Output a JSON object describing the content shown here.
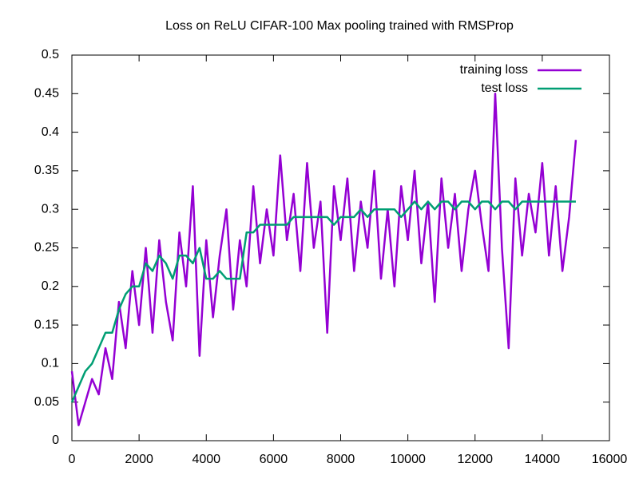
{
  "chart_data": {
    "type": "line",
    "title": "Loss on ReLU CIFAR-100 Max pooling trained with RMSProp",
    "x": [
      0,
      200,
      400,
      600,
      800,
      1000,
      1200,
      1400,
      1600,
      1800,
      2000,
      2200,
      2400,
      2600,
      2800,
      3000,
      3200,
      3400,
      3600,
      3800,
      4000,
      4200,
      4400,
      4600,
      4800,
      5000,
      5200,
      5400,
      5600,
      5800,
      6000,
      6200,
      6400,
      6600,
      6800,
      7000,
      7200,
      7400,
      7600,
      7800,
      8000,
      8200,
      8400,
      8600,
      8800,
      9000,
      9200,
      9400,
      9600,
      9800,
      10000,
      10200,
      10400,
      10600,
      10800,
      11000,
      11200,
      11400,
      11600,
      11800,
      12000,
      12200,
      12400,
      12600,
      12800,
      13000,
      13200,
      13400,
      13600,
      13800,
      14000,
      14200,
      14400,
      14600,
      14800,
      15000
    ],
    "series": [
      {
        "name": "training loss",
        "color": "#9400d3",
        "values": [
          0.09,
          0.02,
          0.05,
          0.08,
          0.06,
          0.12,
          0.08,
          0.18,
          0.12,
          0.22,
          0.15,
          0.25,
          0.14,
          0.26,
          0.18,
          0.13,
          0.27,
          0.2,
          0.33,
          0.11,
          0.26,
          0.16,
          0.24,
          0.3,
          0.17,
          0.26,
          0.2,
          0.33,
          0.23,
          0.3,
          0.24,
          0.37,
          0.26,
          0.32,
          0.22,
          0.36,
          0.25,
          0.31,
          0.14,
          0.33,
          0.26,
          0.34,
          0.22,
          0.31,
          0.25,
          0.35,
          0.21,
          0.3,
          0.2,
          0.33,
          0.26,
          0.35,
          0.23,
          0.31,
          0.18,
          0.34,
          0.25,
          0.32,
          0.22,
          0.3,
          0.35,
          0.28,
          0.22,
          0.45,
          0.25,
          0.12,
          0.34,
          0.24,
          0.32,
          0.27,
          0.36,
          0.24,
          0.33,
          0.22,
          0.29,
          0.39
        ]
      },
      {
        "name": "test loss",
        "color": "#009e73",
        "values": [
          0.05,
          0.07,
          0.09,
          0.1,
          0.12,
          0.14,
          0.14,
          0.17,
          0.19,
          0.2,
          0.2,
          0.23,
          0.22,
          0.24,
          0.23,
          0.21,
          0.24,
          0.24,
          0.23,
          0.25,
          0.21,
          0.21,
          0.22,
          0.21,
          0.21,
          0.21,
          0.27,
          0.27,
          0.28,
          0.28,
          0.28,
          0.28,
          0.28,
          0.29,
          0.29,
          0.29,
          0.29,
          0.29,
          0.29,
          0.28,
          0.29,
          0.29,
          0.29,
          0.3,
          0.29,
          0.3,
          0.3,
          0.3,
          0.3,
          0.29,
          0.3,
          0.31,
          0.3,
          0.31,
          0.3,
          0.31,
          0.31,
          0.3,
          0.31,
          0.31,
          0.3,
          0.31,
          0.31,
          0.3,
          0.31,
          0.31,
          0.3,
          0.31,
          0.31,
          0.31,
          0.31,
          0.31,
          0.31,
          0.31,
          0.31,
          0.31
        ]
      }
    ],
    "xlim": [
      0,
      16000
    ],
    "xticks": [
      0,
      2000,
      4000,
      6000,
      8000,
      10000,
      12000,
      14000,
      16000
    ],
    "ylim": [
      0,
      0.5
    ],
    "yticks": [
      0,
      0.05,
      0.1,
      0.15,
      0.2,
      0.25,
      0.3,
      0.35,
      0.4,
      0.45,
      0.5
    ],
    "legend": "top-right"
  }
}
